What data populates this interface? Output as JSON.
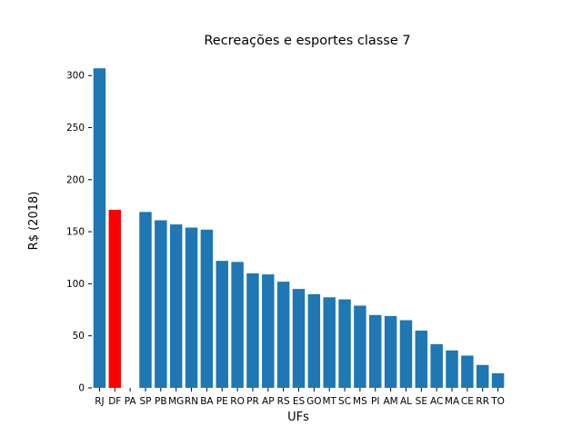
{
  "chart_data": {
    "type": "bar",
    "title": "Recreações e esportes classe 7",
    "xlabel": "UFs",
    "ylabel": "R$ (2018)",
    "categories": [
      "RJ",
      "DF",
      "PA",
      "SP",
      "PB",
      "MG",
      "RN",
      "BA",
      "PE",
      "RO",
      "PR",
      "AP",
      "RS",
      "ES",
      "GO",
      "MT",
      "SC",
      "MS",
      "PI",
      "AM",
      "AL",
      "SE",
      "AC",
      "MA",
      "CE",
      "RR",
      "TO"
    ],
    "values": [
      307,
      171,
      0,
      169,
      161,
      157,
      154,
      152,
      122,
      121,
      110,
      109,
      102,
      95,
      90,
      87,
      85,
      79,
      70,
      69,
      65,
      55,
      42,
      36,
      31,
      22,
      14
    ],
    "highlight": {
      "category": "DF",
      "color": "#ff0000"
    },
    "bar_color": "#1f77b4",
    "yticks": [
      0,
      50,
      100,
      150,
      200,
      250,
      300
    ],
    "ylim": [
      0,
      322
    ],
    "grid": false,
    "legend": "none"
  }
}
